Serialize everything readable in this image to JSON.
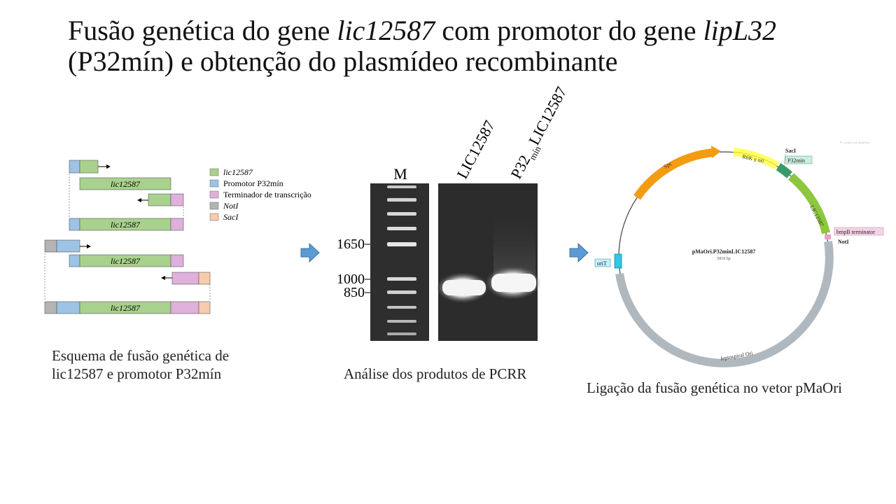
{
  "title": {
    "line1_plain1": "Fusão genética do gene ",
    "line1_italic1": "lic12587",
    "line1_plain2": " com promotor do gene ",
    "line1_italic2": "lipL32",
    "line2": "(P32mín) e obtenção do  plasmídeo recombinante"
  },
  "scheme": {
    "legend": [
      {
        "label": "lic12587",
        "italic": true,
        "color": "#a9d18e"
      },
      {
        "label": "Promotor P32mín",
        "italic": false,
        "color": "#9dc3e6"
      },
      {
        "label": "Terminador de transcrição",
        "italic": false,
        "color": "#e0b0dc"
      },
      {
        "label": "NotI",
        "italic": true,
        "color": "#b4b4b4"
      },
      {
        "label": "SacI",
        "italic": true,
        "color": "#f8cbad"
      }
    ],
    "gene_label": "lic12587",
    "caption_line1": "Esquema de fusão genética de",
    "caption_line2": "lic12587 e promotor P32mín"
  },
  "gel": {
    "marker_label": "M",
    "lane1_label": "LIC12587",
    "lane2_label_main": "P32",
    "lane2_label_sub": "mín",
    "lane2_label_tail": "LIC12587",
    "ladder_marks": [
      "1650",
      "1000",
      "850"
    ],
    "caption": "Análise dos produtos de PCRR"
  },
  "plasmid": {
    "name": "pMaOri.P32minLIC12587",
    "size": "5818 bp",
    "features": {
      "spc": "Spc",
      "r6k": "R6K γ ori",
      "saci": "SacI",
      "p32min": "P32min",
      "lic": "LIC12587",
      "term": "bmpB terminator",
      "noti": "NotI",
      "orit": "oriT",
      "lepto": "leptospiral Ori"
    },
    "watermark": "Pr. created with SnapGene",
    "caption": "Ligação da fusão genética no vetor pMaOri"
  },
  "colors": {
    "arrow": "#5b9bd5",
    "spc": "#f39c12",
    "r6k": "#ffff66",
    "lic": "#8dc63f",
    "p32": "#3a9a6a",
    "backbone": "#b0b8bf",
    "orit": "#2ec7e8"
  }
}
